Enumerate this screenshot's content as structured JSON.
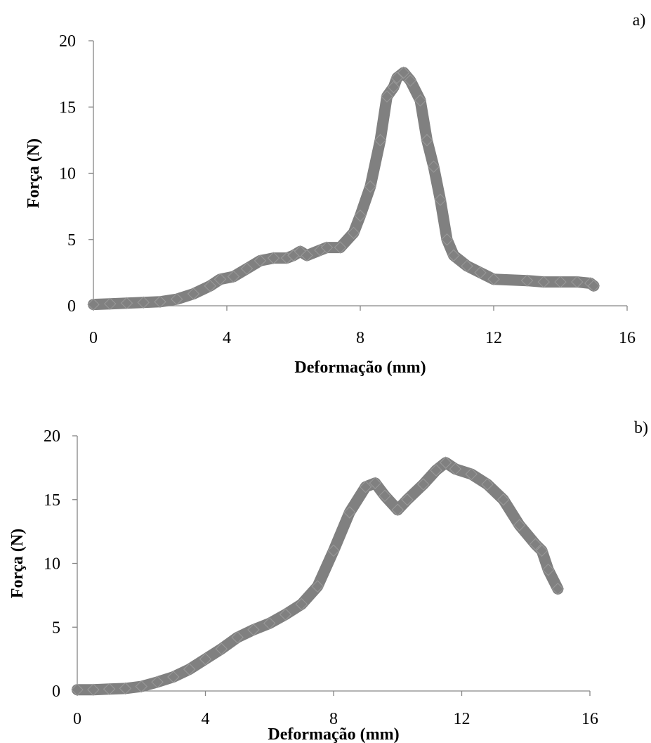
{
  "chart_data": [
    {
      "type": "scatter",
      "panel_label": "a)",
      "xlabel": "Deformação (mm)",
      "ylabel": "Força (N)",
      "xlim": [
        0,
        16
      ],
      "ylim": [
        0,
        20
      ],
      "x_ticks": [
        "0",
        "4",
        "8",
        "12",
        "16"
      ],
      "y_ticks": [
        "0",
        "5",
        "10",
        "15",
        "20"
      ],
      "grid": false,
      "legend": "none",
      "marker": "diamond",
      "color": "#808080",
      "series": [
        {
          "points": [
            [
              0,
              0.1
            ],
            [
              0.5,
              0.15
            ],
            [
              1.0,
              0.2
            ],
            [
              1.5,
              0.25
            ],
            [
              2.0,
              0.3
            ],
            [
              2.5,
              0.5
            ],
            [
              3.0,
              0.9
            ],
            [
              3.5,
              1.5
            ],
            [
              3.8,
              2.0
            ],
            [
              4.2,
              2.2
            ],
            [
              4.6,
              2.8
            ],
            [
              5.0,
              3.4
            ],
            [
              5.4,
              3.6
            ],
            [
              5.8,
              3.6
            ],
            [
              6.0,
              3.8
            ],
            [
              6.2,
              4.1
            ],
            [
              6.4,
              3.8
            ],
            [
              6.8,
              4.2
            ],
            [
              7.0,
              4.4
            ],
            [
              7.4,
              4.4
            ],
            [
              7.8,
              5.5
            ],
            [
              8.0,
              6.8
            ],
            [
              8.3,
              9.0
            ],
            [
              8.6,
              12.5
            ],
            [
              8.8,
              15.8
            ],
            [
              9.0,
              16.5
            ],
            [
              9.1,
              17.2
            ],
            [
              9.3,
              17.6
            ],
            [
              9.5,
              17.0
            ],
            [
              9.8,
              15.5
            ],
            [
              10.0,
              12.5
            ],
            [
              10.2,
              10.5
            ],
            [
              10.4,
              8.0
            ],
            [
              10.6,
              5.0
            ],
            [
              10.8,
              3.8
            ],
            [
              11.2,
              3.0
            ],
            [
              11.6,
              2.5
            ],
            [
              12.0,
              2.0
            ],
            [
              13.0,
              1.9
            ],
            [
              13.5,
              1.8
            ],
            [
              14.0,
              1.8
            ],
            [
              14.5,
              1.8
            ],
            [
              14.9,
              1.7
            ],
            [
              15.0,
              1.5
            ]
          ]
        }
      ]
    },
    {
      "type": "scatter",
      "panel_label": "b)",
      "xlabel": "Deformação (mm)",
      "ylabel": "Força (N)",
      "xlim": [
        0,
        16
      ],
      "ylim": [
        0,
        20
      ],
      "x_ticks": [
        "0",
        "4",
        "8",
        "12",
        "16"
      ],
      "y_ticks": [
        "0",
        "5",
        "10",
        "15",
        "20"
      ],
      "grid": false,
      "legend": "none",
      "marker": "diamond",
      "color": "#808080",
      "series": [
        {
          "points": [
            [
              0,
              0.1
            ],
            [
              0.5,
              0.1
            ],
            [
              1.0,
              0.15
            ],
            [
              1.5,
              0.2
            ],
            [
              2.0,
              0.35
            ],
            [
              2.5,
              0.7
            ],
            [
              3.0,
              1.1
            ],
            [
              3.5,
              1.7
            ],
            [
              4.0,
              2.5
            ],
            [
              4.5,
              3.3
            ],
            [
              5.0,
              4.2
            ],
            [
              5.5,
              4.8
            ],
            [
              6.0,
              5.3
            ],
            [
              6.5,
              6.0
            ],
            [
              7.0,
              6.8
            ],
            [
              7.5,
              8.2
            ],
            [
              8.0,
              11.0
            ],
            [
              8.5,
              14.0
            ],
            [
              9.0,
              16.0
            ],
            [
              9.3,
              16.3
            ],
            [
              9.6,
              15.3
            ],
            [
              10.0,
              14.2
            ],
            [
              10.3,
              15.0
            ],
            [
              10.8,
              16.2
            ],
            [
              11.2,
              17.3
            ],
            [
              11.5,
              17.9
            ],
            [
              11.8,
              17.4
            ],
            [
              12.3,
              17.0
            ],
            [
              12.8,
              16.2
            ],
            [
              13.3,
              15.0
            ],
            [
              13.8,
              13.0
            ],
            [
              14.3,
              11.5
            ],
            [
              14.5,
              11.0
            ],
            [
              14.7,
              9.5
            ],
            [
              15.0,
              8.0
            ]
          ]
        }
      ]
    }
  ]
}
